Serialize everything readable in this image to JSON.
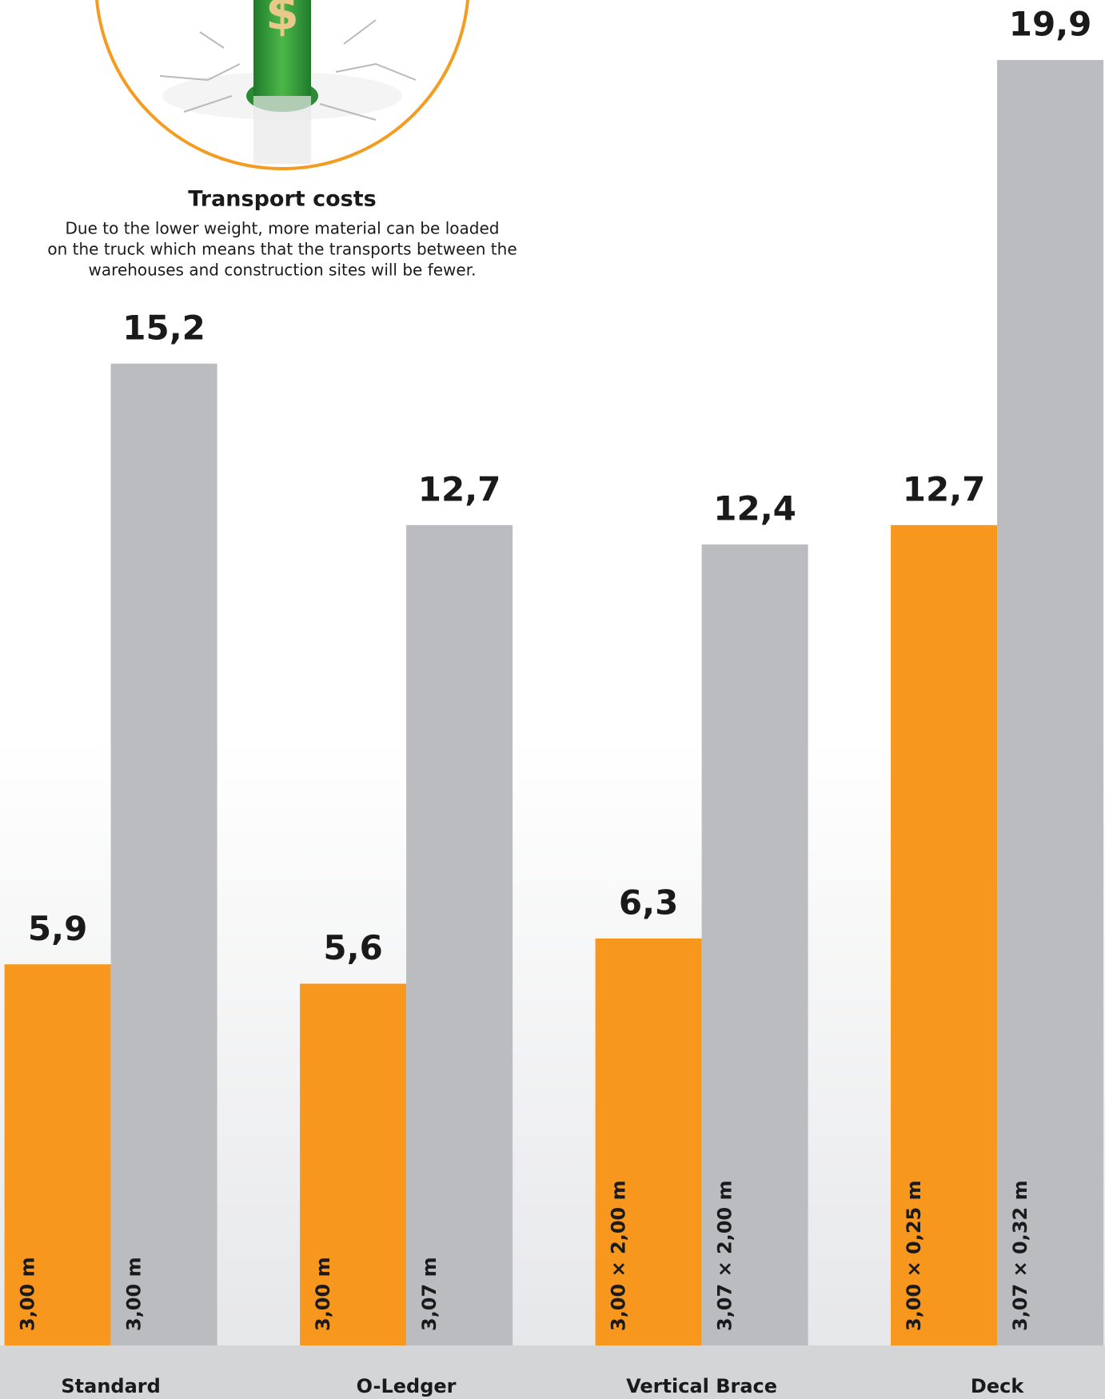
{
  "chart_data": {
    "type": "bar",
    "title": "Transport costs",
    "subtitle": [
      "Due to the lower weight, more material can be loaded",
      "on the truck which means that the transports between the",
      "warehouses and construction sites will be fewer."
    ],
    "categories": [
      "Standard",
      "O-Ledger",
      "Vertical Brace",
      "Deck"
    ],
    "series": [
      {
        "color": "#f7971e",
        "values": [
          5.9,
          5.6,
          6.3,
          12.7
        ],
        "value_labels": [
          "5,9",
          "5,6",
          "6,3",
          "12,7"
        ],
        "bar_labels": [
          "3,00 m",
          "3,00 m",
          "3,00 × 2,00 m",
          "3,00 × 0,25 m"
        ]
      },
      {
        "color": "#bbbcc0",
        "values": [
          15.2,
          12.7,
          12.4,
          19.9
        ],
        "value_labels": [
          "15,2",
          "12,7",
          "12,4",
          "19,9"
        ],
        "bar_labels": [
          "3,00 m",
          "3,07 m",
          "3,07 × 2,00 m",
          "3,07 × 0,32 m"
        ]
      }
    ],
    "ylim": [
      0,
      20
    ]
  }
}
